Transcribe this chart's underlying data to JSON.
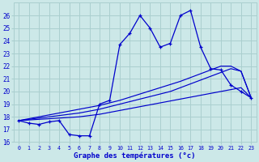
{
  "xlabel": "Graphe des températures (°c)",
  "background_color": "#cce8e8",
  "grid_color": "#aacfcf",
  "line_color": "#0000cc",
  "hours": [
    0,
    1,
    2,
    3,
    4,
    5,
    6,
    7,
    8,
    9,
    10,
    11,
    12,
    13,
    14,
    15,
    16,
    17,
    18,
    19,
    20,
    21,
    22,
    23
  ],
  "temp": [
    17.7,
    17.5,
    17.4,
    17.6,
    17.7,
    16.6,
    16.5,
    16.5,
    19.0,
    19.3,
    23.7,
    24.6,
    26.0,
    25.0,
    23.5,
    23.8,
    26.0,
    26.4,
    23.5,
    21.8,
    21.7,
    20.5,
    20.0,
    19.5
  ],
  "trend1": [
    17.7,
    17.75,
    17.8,
    17.85,
    17.9,
    17.95,
    18.0,
    18.1,
    18.2,
    18.35,
    18.5,
    18.65,
    18.8,
    18.95,
    19.1,
    19.25,
    19.4,
    19.55,
    19.7,
    19.85,
    20.0,
    20.15,
    20.3,
    19.5
  ],
  "trend2": [
    17.7,
    17.8,
    17.9,
    18.0,
    18.1,
    18.2,
    18.3,
    18.45,
    18.6,
    18.8,
    19.0,
    19.2,
    19.4,
    19.6,
    19.8,
    20.0,
    20.3,
    20.6,
    20.9,
    21.2,
    21.5,
    21.8,
    21.6,
    19.5
  ],
  "trend3": [
    17.7,
    17.85,
    18.0,
    18.15,
    18.3,
    18.45,
    18.6,
    18.75,
    18.9,
    19.1,
    19.3,
    19.55,
    19.8,
    20.05,
    20.3,
    20.55,
    20.8,
    21.1,
    21.4,
    21.7,
    22.0,
    22.0,
    21.6,
    19.5
  ],
  "ylim": [
    16,
    27
  ],
  "yticks": [
    16,
    17,
    18,
    19,
    20,
    21,
    22,
    23,
    24,
    25,
    26
  ],
  "xticks": [
    0,
    1,
    2,
    3,
    4,
    5,
    6,
    7,
    8,
    9,
    10,
    11,
    12,
    13,
    14,
    15,
    16,
    17,
    18,
    19,
    20,
    21,
    22,
    23
  ]
}
